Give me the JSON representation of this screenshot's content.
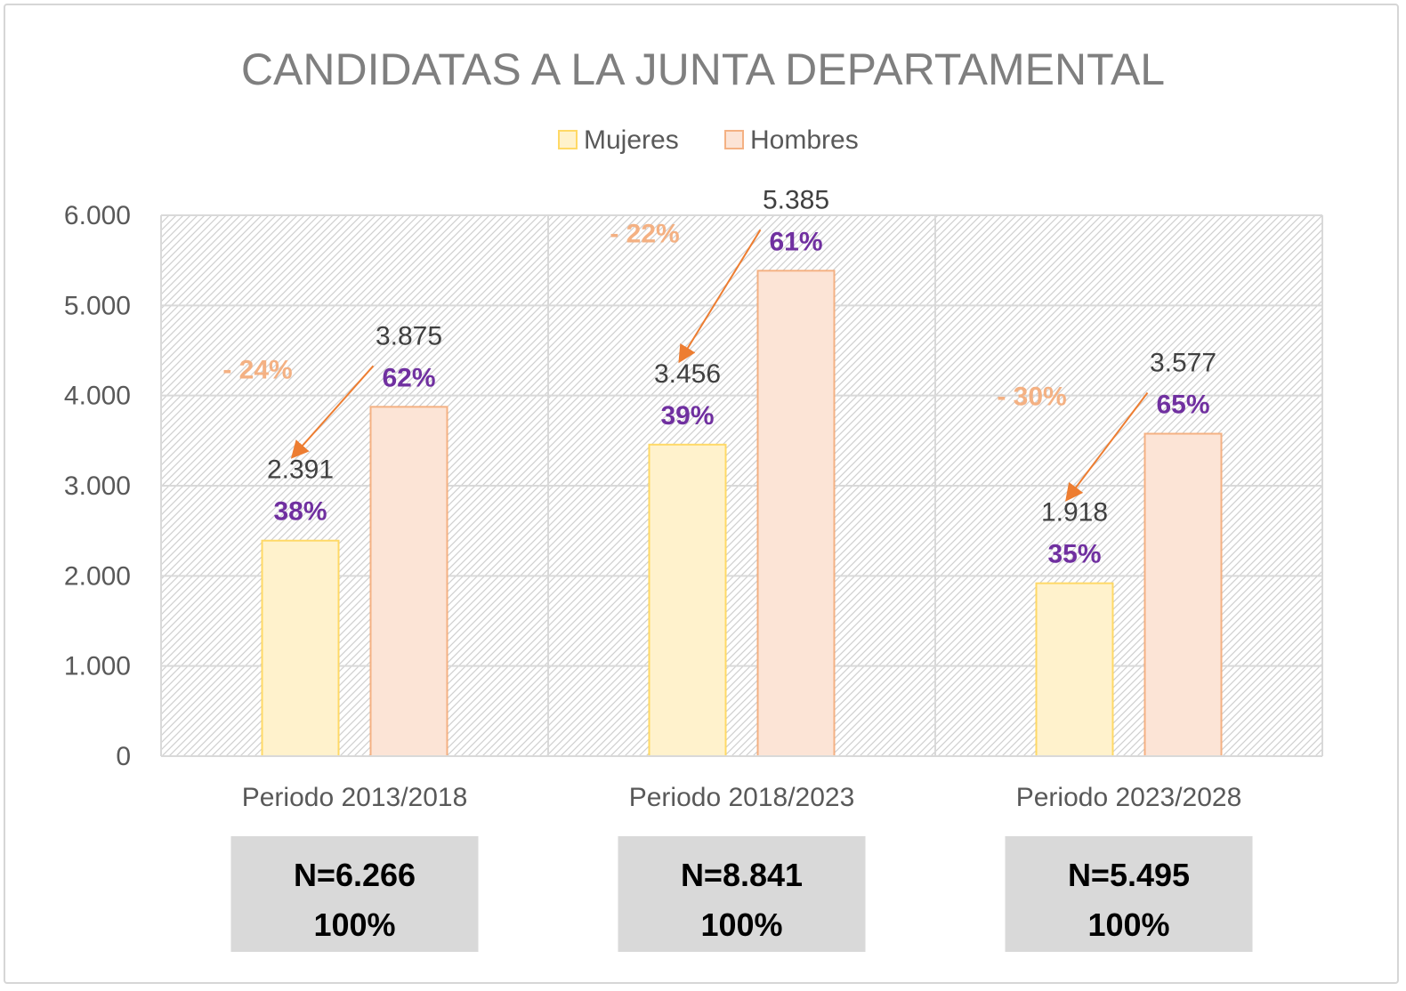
{
  "chart_data": {
    "type": "bar",
    "title": "CANDIDATAS A LA JUNTA DEPARTAMENTAL",
    "categories": [
      "Periodo 2013/2018",
      "Periodo 2018/2023",
      "Periodo 2023/2028"
    ],
    "series": [
      {
        "name": "Mujeres",
        "values": [
          2391,
          3456,
          1918
        ],
        "labels": [
          "2.391",
          "3.456",
          "1.918"
        ],
        "percents": [
          "38%",
          "39%",
          "35%"
        ],
        "fill": "#fff2cc",
        "stroke": "#ffd966"
      },
      {
        "name": "Hombres",
        "values": [
          3875,
          5385,
          3577
        ],
        "labels": [
          "3.875",
          "5.385",
          "3.577"
        ],
        "percents": [
          "62%",
          "61%",
          "65%"
        ],
        "fill": "#fce4d6",
        "stroke": "#f4b183"
      }
    ],
    "gap_labels": [
      "- 24%",
      "- 22%",
      "- 30%"
    ],
    "totals": [
      {
        "n": "N=6.266",
        "pct": "100%"
      },
      {
        "n": "N=8.841",
        "pct": "100%"
      },
      {
        "n": "N=5.495",
        "pct": "100%"
      }
    ],
    "yticks": [
      "0",
      "1.000",
      "2.000",
      "3.000",
      "4.000",
      "5.000",
      "6.000"
    ],
    "ylim": [
      0,
      6000
    ],
    "grid": true,
    "legend_position": "top",
    "colors": {
      "percent": "#7030a0",
      "gap": "#f4b183",
      "arrow": "#ed7d31"
    }
  }
}
